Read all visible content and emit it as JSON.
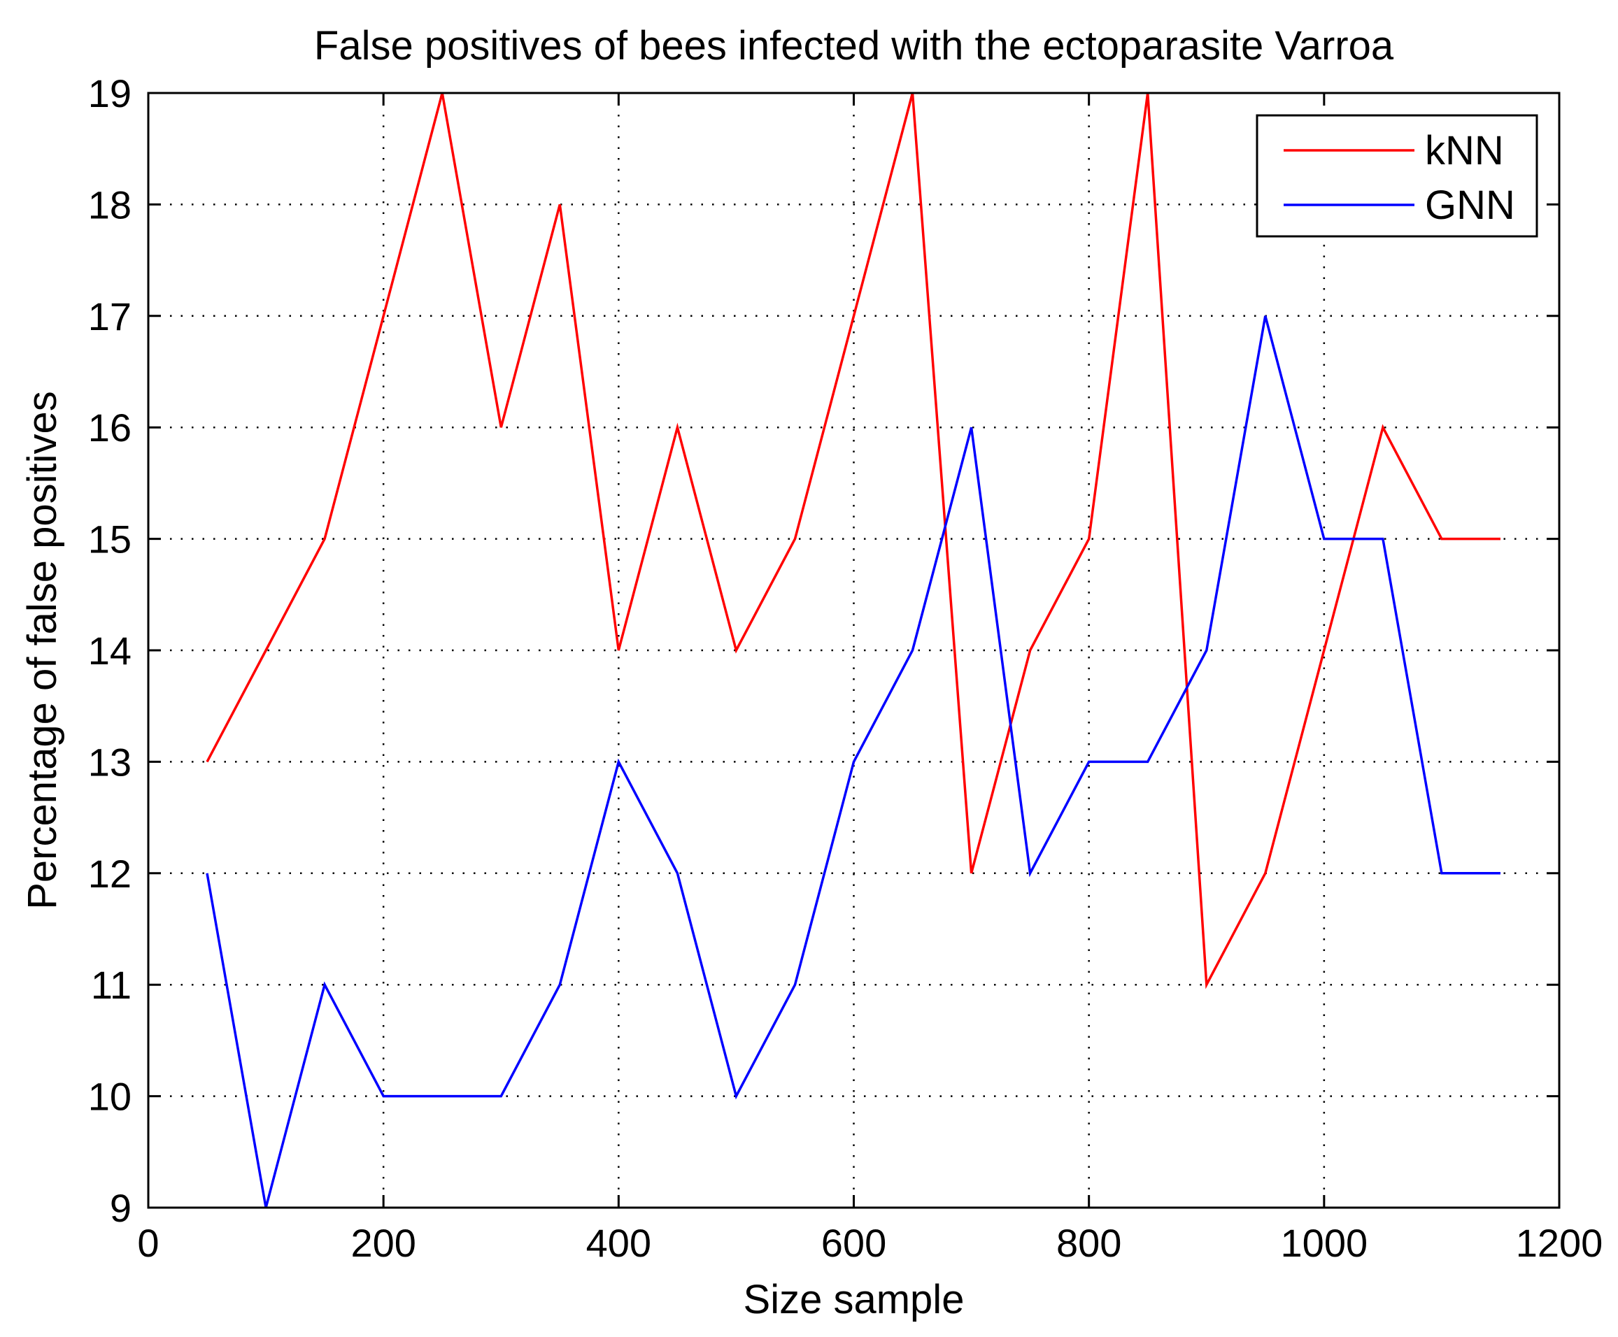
{
  "chart_data": {
    "type": "line",
    "title": "False positives of bees infected with the ectoparasite Varroa",
    "xlabel": "Size sample",
    "ylabel": "Percentage of false positives",
    "xlim": [
      0,
      1200
    ],
    "ylim": [
      9,
      19
    ],
    "xticks": [
      0,
      200,
      400,
      600,
      800,
      1000,
      1200
    ],
    "yticks": [
      9,
      10,
      11,
      12,
      13,
      14,
      15,
      16,
      17,
      18,
      19
    ],
    "grid": true,
    "legend_position": "top-right",
    "x": [
      50,
      100,
      150,
      200,
      250,
      300,
      350,
      400,
      450,
      500,
      550,
      600,
      650,
      700,
      750,
      800,
      850,
      900,
      950,
      1000,
      1050,
      1100,
      1150
    ],
    "series": [
      {
        "name": "kNN",
        "color": "#ff0000",
        "values": [
          13,
          14,
          15,
          17,
          19,
          16,
          18,
          14,
          16,
          14,
          15,
          17,
          19,
          12,
          14,
          15,
          19,
          11,
          12,
          14,
          16,
          15,
          15
        ]
      },
      {
        "name": "GNN",
        "color": "#0000ff",
        "values": [
          12,
          9,
          11,
          10,
          10,
          10,
          11,
          13,
          12,
          10,
          11,
          13,
          14,
          16,
          12,
          13,
          13,
          14,
          17,
          15,
          15,
          12,
          12
        ]
      }
    ]
  }
}
